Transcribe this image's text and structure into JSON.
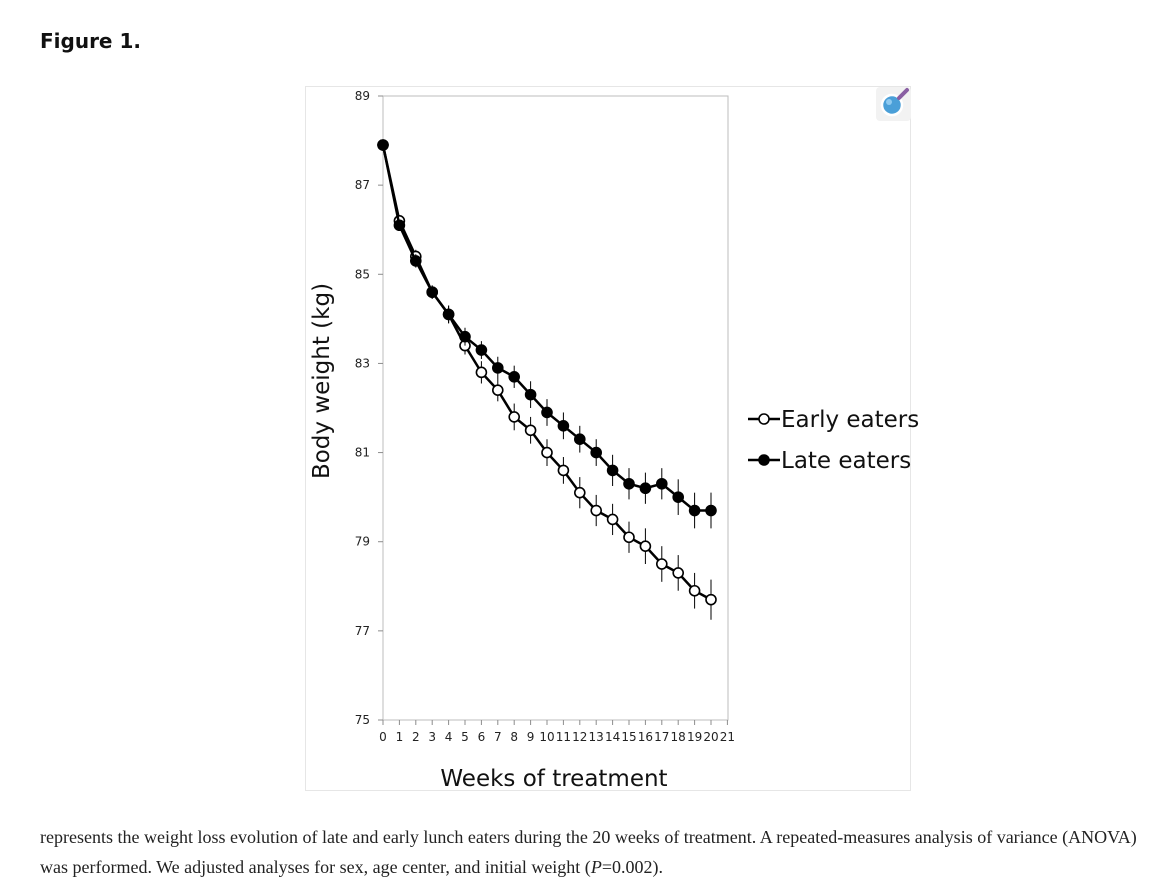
{
  "figure": {
    "label": "Figure 1."
  },
  "caption": {
    "part1": "represents the weight loss evolution of late and early lunch eaters during the 20 weeks of treatment. A repeated-measures analysis of variance (ANOVA) was performed. We adjusted analyses for sex, age center, and initial weight (",
    "p_symbol": "P",
    "part2": "=0.002)."
  },
  "chart_data": {
    "type": "line",
    "title": "",
    "xlabel": "Weeks of treatment",
    "ylabel": "Body weight (kg)",
    "xlim": [
      0,
      21
    ],
    "ylim": [
      75,
      89
    ],
    "x_ticks": [
      0,
      1,
      2,
      3,
      4,
      5,
      6,
      7,
      8,
      9,
      10,
      11,
      12,
      13,
      14,
      15,
      16,
      17,
      18,
      19,
      20,
      21
    ],
    "y_ticks": [
      75,
      77,
      79,
      81,
      83,
      85,
      87,
      89
    ],
    "legend_position": "right",
    "series": [
      {
        "name": "Early eaters",
        "marker": "open-circle",
        "x": [
          0,
          1,
          2,
          3,
          4,
          5,
          6,
          7,
          8,
          9,
          10,
          11,
          12,
          13,
          14,
          15,
          16,
          17,
          18,
          19,
          20
        ],
        "values": [
          87.9,
          86.2,
          85.4,
          84.6,
          84.1,
          83.4,
          82.8,
          82.4,
          81.8,
          81.5,
          81.0,
          80.6,
          80.1,
          79.7,
          79.5,
          79.1,
          78.9,
          78.5,
          78.3,
          77.9,
          77.7
        ],
        "error": [
          0,
          0.1,
          0.15,
          0.15,
          0.2,
          0.2,
          0.25,
          0.25,
          0.3,
          0.3,
          0.3,
          0.3,
          0.35,
          0.35,
          0.35,
          0.35,
          0.4,
          0.4,
          0.4,
          0.4,
          0.45
        ]
      },
      {
        "name": "Late eaters",
        "marker": "filled-circle",
        "x": [
          0,
          1,
          2,
          3,
          4,
          5,
          6,
          7,
          8,
          9,
          10,
          11,
          12,
          13,
          14,
          15,
          16,
          17,
          18,
          19,
          20
        ],
        "values": [
          87.9,
          86.1,
          85.3,
          84.6,
          84.1,
          83.6,
          83.3,
          82.9,
          82.7,
          82.3,
          81.9,
          81.6,
          81.3,
          81.0,
          80.6,
          80.3,
          80.2,
          80.3,
          80.0,
          79.7,
          79.7
        ],
        "error": [
          0,
          0.1,
          0.15,
          0.15,
          0.2,
          0.2,
          0.2,
          0.25,
          0.25,
          0.3,
          0.3,
          0.3,
          0.3,
          0.3,
          0.35,
          0.35,
          0.35,
          0.35,
          0.4,
          0.4,
          0.4
        ]
      }
    ]
  },
  "colors": {
    "line": "#000000",
    "axis": "#8c8c8c",
    "frame": "#bdbdbd",
    "zoom_icon": "#4a9fd8",
    "zoom_handle": "#8a5fa3"
  },
  "icons": {
    "zoom": "magnifier-zoom-icon"
  }
}
